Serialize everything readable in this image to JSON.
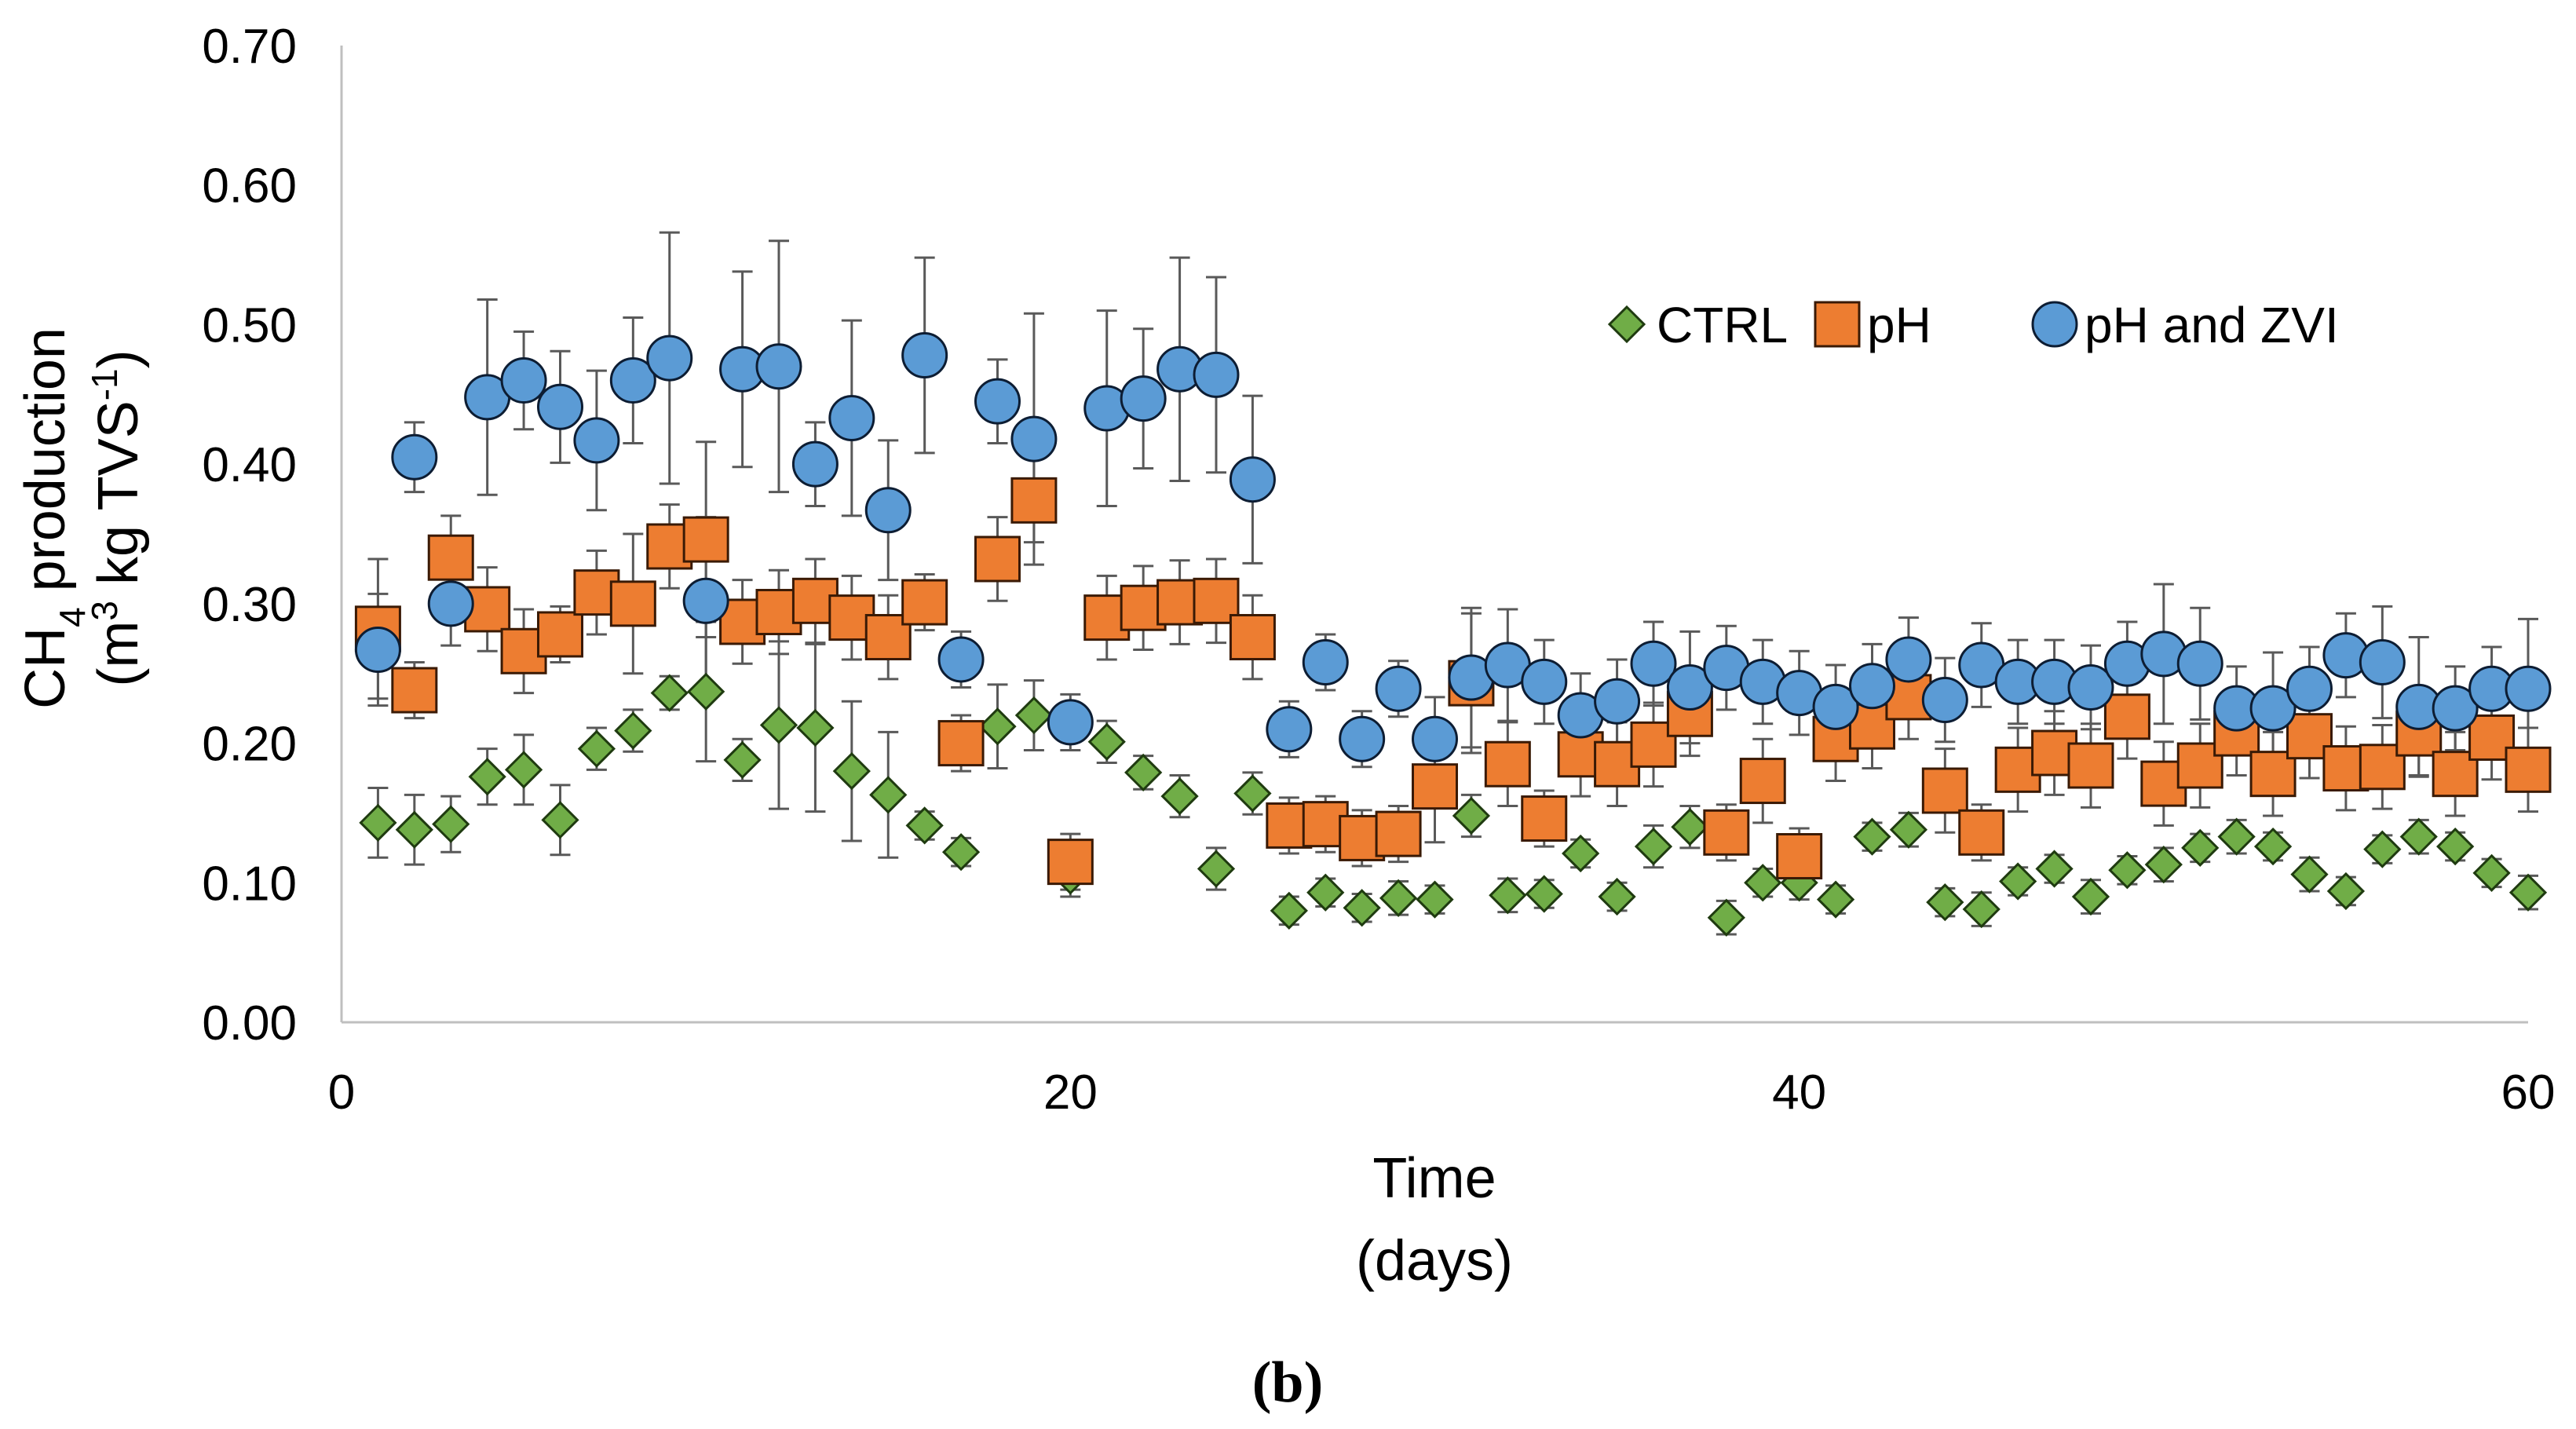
{
  "chart_data": {
    "type": "scatter",
    "xlabel": [
      "Time",
      "(days)"
    ],
    "ylabel": {
      "line1_parts": [
        "CH",
        "4",
        " production"
      ],
      "line2_parts": [
        "(m",
        "3",
        " kg TVS",
        "-1",
        ")"
      ]
    },
    "xlim": [
      0,
      60
    ],
    "ylim": [
      0,
      0.7
    ],
    "xticks": [
      {
        "value": 0,
        "label": "0"
      },
      {
        "value": 20,
        "label": "20"
      },
      {
        "value": 40,
        "label": "40"
      },
      {
        "value": 60,
        "label": "60"
      }
    ],
    "yticks": [
      {
        "value": 0,
        "label": "0.00"
      },
      {
        "value": 0.1,
        "label": "0.10"
      },
      {
        "value": 0.2,
        "label": "0.20"
      },
      {
        "value": 0.3,
        "label": "0.30"
      },
      {
        "value": 0.4,
        "label": "0.40"
      },
      {
        "value": 0.5,
        "label": "0.50"
      },
      {
        "value": 0.6,
        "label": "0.60"
      },
      {
        "value": 0.7,
        "label": "0.70"
      }
    ],
    "grid": false,
    "legend_position": "top-right",
    "panel_label": "(b)",
    "series": [
      {
        "name": "CTRL",
        "marker": "diamond",
        "color": "#70AD47",
        "edge": "#1f3b10",
        "x": [
          1,
          2,
          3,
          4,
          5,
          6,
          7,
          8,
          9,
          10,
          11,
          12,
          13,
          14,
          15,
          16,
          17,
          18,
          19,
          20,
          21,
          22,
          23,
          24,
          25,
          26,
          27,
          28,
          29,
          30,
          31,
          32,
          33,
          34,
          35,
          36,
          37,
          38,
          39,
          40,
          41,
          42,
          43,
          44,
          45,
          46,
          47,
          48,
          49,
          50,
          51,
          52,
          53,
          54,
          55,
          56,
          57,
          58,
          59,
          60
        ],
        "y": [
          0.143,
          0.138,
          0.142,
          0.176,
          0.181,
          0.145,
          0.196,
          0.209,
          0.236,
          0.237,
          0.188,
          0.213,
          0.211,
          0.18,
          0.163,
          0.141,
          0.122,
          0.212,
          0.22,
          0.105,
          0.201,
          0.179,
          0.162,
          0.11,
          0.164,
          0.08,
          0.093,
          0.082,
          0.089,
          0.088,
          0.148,
          0.091,
          0.092,
          0.121,
          0.09,
          0.126,
          0.14,
          0.075,
          0.1,
          0.1,
          0.088,
          0.133,
          0.138,
          0.086,
          0.081,
          0.101,
          0.11,
          0.09,
          0.109,
          0.113,
          0.125,
          0.133,
          0.126,
          0.106,
          0.094,
          0.124,
          0.133,
          0.126,
          0.107,
          0.093
        ],
        "err": [
          0.025,
          0.025,
          0.02,
          0.02,
          0.025,
          0.025,
          0.015,
          0.015,
          0.012,
          0.05,
          0.015,
          0.06,
          0.06,
          0.05,
          0.045,
          0.01,
          0.01,
          0.03,
          0.025,
          0.015,
          0.015,
          0.012,
          0.015,
          0.015,
          0.015,
          0.01,
          0.01,
          0.01,
          0.012,
          0.01,
          0.015,
          0.012,
          0.01,
          0.01,
          0.01,
          0.015,
          0.015,
          0.012,
          0.01,
          0.012,
          0.01,
          0.01,
          0.012,
          0.01,
          0.012,
          0.01,
          0.01,
          0.012,
          0.01,
          0.012,
          0.01,
          0.012,
          0.01,
          0.012,
          0.01,
          0.01,
          0.012,
          0.01,
          0.01,
          0.012
        ]
      },
      {
        "name": "pH",
        "marker": "square",
        "color": "#ED7D31",
        "edge": "#3a1a05",
        "x": [
          1,
          2,
          3,
          4,
          5,
          6,
          7,
          8,
          9,
          10,
          11,
          12,
          13,
          14,
          15,
          16,
          17,
          18,
          19,
          20,
          21,
          22,
          23,
          24,
          25,
          26,
          27,
          28,
          29,
          30,
          31,
          32,
          33,
          34,
          35,
          36,
          37,
          38,
          39,
          40,
          41,
          42,
          43,
          44,
          45,
          46,
          47,
          48,
          49,
          50,
          51,
          52,
          53,
          54,
          55,
          56,
          57,
          58,
          59,
          60
        ],
        "y": [
          0.282,
          0.238,
          0.333,
          0.296,
          0.266,
          0.278,
          0.308,
          0.3,
          0.341,
          0.346,
          0.287,
          0.294,
          0.302,
          0.29,
          0.276,
          0.301,
          0.2,
          0.332,
          0.374,
          0.115,
          0.29,
          0.297,
          0.301,
          0.302,
          0.276,
          0.141,
          0.142,
          0.132,
          0.135,
          0.169,
          0.243,
          0.185,
          0.146,
          0.192,
          0.185,
          0.199,
          0.221,
          0.136,
          0.173,
          0.119,
          0.203,
          0.212,
          0.233,
          0.166,
          0.136,
          0.181,
          0.193,
          0.184,
          0.219,
          0.171,
          0.184,
          0.207,
          0.178,
          0.205,
          0.182,
          0.183,
          0.207,
          0.178,
          0.204,
          0.181
        ],
        "err": [
          0.05,
          0.02,
          0.03,
          0.03,
          0.03,
          0.02,
          0.03,
          0.05,
          0.03,
          0.07,
          0.03,
          0.03,
          0.03,
          0.03,
          0.03,
          0.02,
          0.02,
          0.03,
          0.03,
          0.02,
          0.03,
          0.03,
          0.03,
          0.03,
          0.03,
          0.02,
          0.02,
          0.02,
          0.02,
          0.04,
          0.05,
          0.03,
          0.02,
          0.03,
          0.03,
          0.03,
          0.03,
          0.02,
          0.03,
          0.02,
          0.03,
          0.03,
          0.03,
          0.03,
          0.02,
          0.03,
          0.03,
          0.03,
          0.03,
          0.03,
          0.03,
          0.03,
          0.03,
          0.03,
          0.03,
          0.03,
          0.03,
          0.03,
          0.03,
          0.03
        ]
      },
      {
        "name": "pH and ZVI",
        "marker": "circle",
        "color": "#5B9BD5",
        "edge": "#0d1d33",
        "x": [
          1,
          2,
          3,
          4,
          5,
          6,
          7,
          8,
          9,
          10,
          11,
          12,
          13,
          14,
          15,
          16,
          17,
          18,
          19,
          20,
          21,
          22,
          23,
          24,
          25,
          26,
          27,
          28,
          29,
          30,
          31,
          32,
          33,
          34,
          35,
          36,
          37,
          38,
          39,
          40,
          41,
          42,
          43,
          44,
          45,
          46,
          47,
          48,
          49,
          50,
          51,
          52,
          53,
          54,
          55,
          56,
          57,
          58,
          59,
          60
        ],
        "y": [
          0.267,
          0.405,
          0.3,
          0.448,
          0.46,
          0.441,
          0.417,
          0.46,
          0.476,
          0.302,
          0.468,
          0.47,
          0.4,
          0.433,
          0.367,
          0.478,
          0.26,
          0.445,
          0.418,
          0.215,
          0.44,
          0.447,
          0.468,
          0.464,
          0.389,
          0.21,
          0.258,
          0.203,
          0.239,
          0.203,
          0.247,
          0.256,
          0.244,
          0.22,
          0.23,
          0.257,
          0.24,
          0.254,
          0.244,
          0.236,
          0.226,
          0.241,
          0.26,
          0.231,
          0.256,
          0.244,
          0.244,
          0.24,
          0.257,
          0.264,
          0.257,
          0.225,
          0.225,
          0.239,
          0.263,
          0.258,
          0.226,
          0.225,
          0.239,
          0.239
        ],
        "err": [
          0.04,
          0.025,
          0.03,
          0.07,
          0.035,
          0.04,
          0.05,
          0.045,
          0.09,
          0.06,
          0.07,
          0.09,
          0.03,
          0.07,
          0.05,
          0.07,
          0.02,
          0.03,
          0.09,
          0.02,
          0.07,
          0.05,
          0.08,
          0.07,
          0.06,
          0.02,
          0.02,
          0.02,
          0.02,
          0.03,
          0.05,
          0.04,
          0.03,
          0.03,
          0.03,
          0.03,
          0.04,
          0.03,
          0.03,
          0.03,
          0.03,
          0.03,
          0.03,
          0.03,
          0.03,
          0.03,
          0.03,
          0.03,
          0.03,
          0.05,
          0.04,
          0.03,
          0.04,
          0.03,
          0.03,
          0.04,
          0.05,
          0.03,
          0.03,
          0.05
        ]
      }
    ]
  }
}
